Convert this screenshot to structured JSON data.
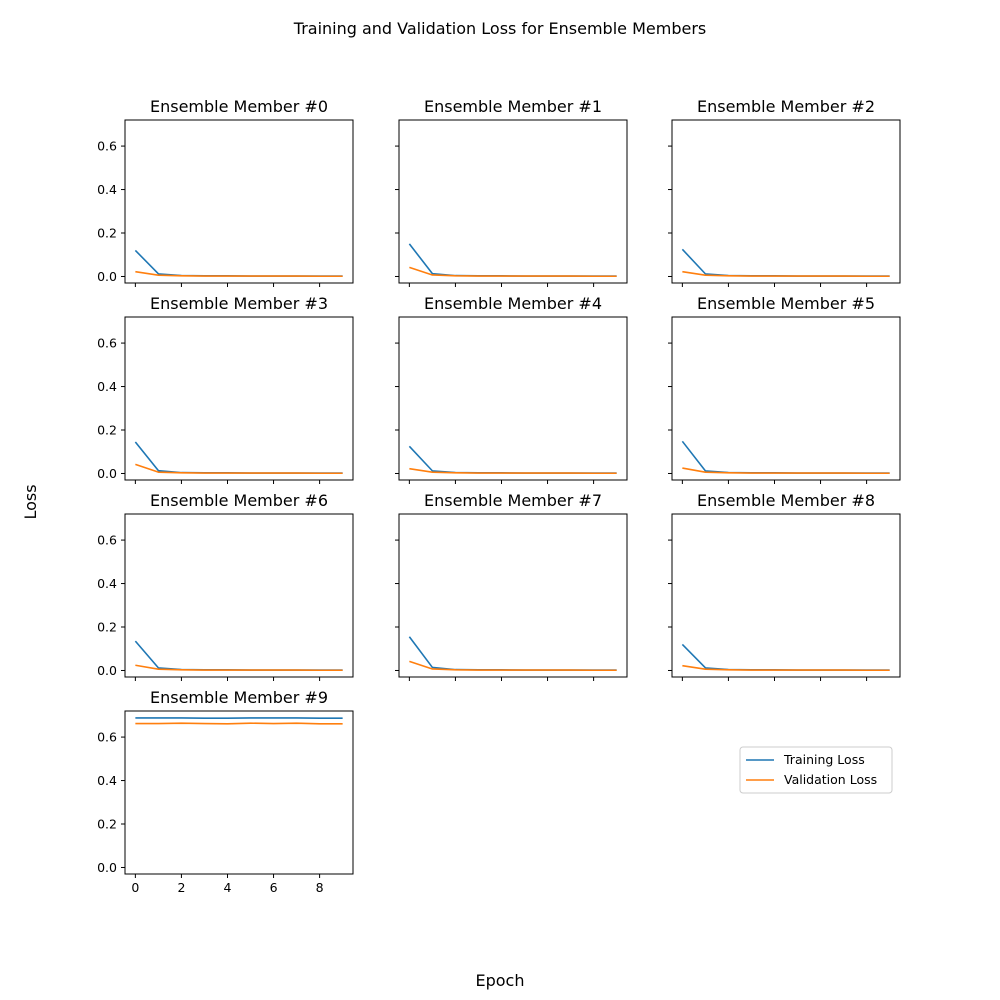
{
  "figure": {
    "title": "Training and Validation Loss for Ensemble Members",
    "xlabel": "Epoch",
    "ylabel": "Loss"
  },
  "chart_data": [
    {
      "type": "line",
      "title": "Ensemble Member #0",
      "x": [
        0,
        1,
        2,
        3,
        4,
        5,
        6,
        7,
        8,
        9
      ],
      "ylim": [
        -0.03,
        0.72
      ],
      "xlim": [
        -0.45,
        9.45
      ],
      "yticks": [
        "0.0",
        "0.2",
        "0.4",
        "0.6"
      ],
      "xticks": [],
      "series": [
        {
          "name": "Training Loss",
          "color": "#1f77b4",
          "values": [
            0.12,
            0.012,
            0.004,
            0.003,
            0.003,
            0.002,
            0.002,
            0.002,
            0.002,
            0.002
          ]
        },
        {
          "name": "Validation Loss",
          "color": "#ff7f0e",
          "values": [
            0.022,
            0.006,
            0.003,
            0.002,
            0.002,
            0.002,
            0.002,
            0.002,
            0.001,
            0.001
          ]
        }
      ]
    },
    {
      "type": "line",
      "title": "Ensemble Member #1",
      "x": [
        0,
        1,
        2,
        3,
        4,
        5,
        6,
        7,
        8,
        9
      ],
      "ylim": [
        -0.03,
        0.72
      ],
      "xlim": [
        -0.45,
        9.45
      ],
      "yticks": [],
      "xticks": [],
      "series": [
        {
          "name": "Training Loss",
          "color": "#1f77b4",
          "values": [
            0.15,
            0.013,
            0.004,
            0.003,
            0.003,
            0.002,
            0.002,
            0.002,
            0.002,
            0.002
          ]
        },
        {
          "name": "Validation Loss",
          "color": "#ff7f0e",
          "values": [
            0.042,
            0.007,
            0.003,
            0.002,
            0.002,
            0.002,
            0.002,
            0.002,
            0.001,
            0.001
          ]
        }
      ]
    },
    {
      "type": "line",
      "title": "Ensemble Member #2",
      "x": [
        0,
        1,
        2,
        3,
        4,
        5,
        6,
        7,
        8,
        9
      ],
      "ylim": [
        -0.03,
        0.72
      ],
      "xlim": [
        -0.45,
        9.45
      ],
      "yticks": [],
      "xticks": [],
      "series": [
        {
          "name": "Training Loss",
          "color": "#1f77b4",
          "values": [
            0.125,
            0.012,
            0.004,
            0.003,
            0.003,
            0.002,
            0.002,
            0.002,
            0.002,
            0.002
          ]
        },
        {
          "name": "Validation Loss",
          "color": "#ff7f0e",
          "values": [
            0.022,
            0.006,
            0.003,
            0.002,
            0.002,
            0.002,
            0.002,
            0.002,
            0.001,
            0.001
          ]
        }
      ]
    },
    {
      "type": "line",
      "title": "Ensemble Member #3",
      "x": [
        0,
        1,
        2,
        3,
        4,
        5,
        6,
        7,
        8,
        9
      ],
      "ylim": [
        -0.03,
        0.72
      ],
      "xlim": [
        -0.45,
        9.45
      ],
      "yticks": [
        "0.0",
        "0.2",
        "0.4",
        "0.6"
      ],
      "xticks": [],
      "series": [
        {
          "name": "Training Loss",
          "color": "#1f77b4",
          "values": [
            0.145,
            0.013,
            0.004,
            0.003,
            0.003,
            0.002,
            0.002,
            0.002,
            0.002,
            0.002
          ]
        },
        {
          "name": "Validation Loss",
          "color": "#ff7f0e",
          "values": [
            0.042,
            0.006,
            0.003,
            0.002,
            0.002,
            0.002,
            0.002,
            0.002,
            0.001,
            0.001
          ]
        }
      ]
    },
    {
      "type": "line",
      "title": "Ensemble Member #4",
      "x": [
        0,
        1,
        2,
        3,
        4,
        5,
        6,
        7,
        8,
        9
      ],
      "ylim": [
        -0.03,
        0.72
      ],
      "xlim": [
        -0.45,
        9.45
      ],
      "yticks": [],
      "xticks": [],
      "series": [
        {
          "name": "Training Loss",
          "color": "#1f77b4",
          "values": [
            0.125,
            0.012,
            0.004,
            0.003,
            0.003,
            0.002,
            0.002,
            0.002,
            0.002,
            0.002
          ]
        },
        {
          "name": "Validation Loss",
          "color": "#ff7f0e",
          "values": [
            0.022,
            0.006,
            0.003,
            0.002,
            0.002,
            0.002,
            0.002,
            0.002,
            0.001,
            0.001
          ]
        }
      ]
    },
    {
      "type": "line",
      "title": "Ensemble Member #5",
      "x": [
        0,
        1,
        2,
        3,
        4,
        5,
        6,
        7,
        8,
        9
      ],
      "ylim": [
        -0.03,
        0.72
      ],
      "xlim": [
        -0.45,
        9.45
      ],
      "yticks": [],
      "xticks": [],
      "series": [
        {
          "name": "Training Loss",
          "color": "#1f77b4",
          "values": [
            0.148,
            0.012,
            0.004,
            0.003,
            0.003,
            0.002,
            0.002,
            0.002,
            0.002,
            0.002
          ]
        },
        {
          "name": "Validation Loss",
          "color": "#ff7f0e",
          "values": [
            0.025,
            0.006,
            0.003,
            0.002,
            0.002,
            0.002,
            0.002,
            0.002,
            0.001,
            0.001
          ]
        }
      ]
    },
    {
      "type": "line",
      "title": "Ensemble Member #6",
      "x": [
        0,
        1,
        2,
        3,
        4,
        5,
        6,
        7,
        8,
        9
      ],
      "ylim": [
        -0.03,
        0.72
      ],
      "xlim": [
        -0.45,
        9.45
      ],
      "yticks": [
        "0.0",
        "0.2",
        "0.4",
        "0.6"
      ],
      "xticks": [],
      "series": [
        {
          "name": "Training Loss",
          "color": "#1f77b4",
          "values": [
            0.135,
            0.012,
            0.004,
            0.003,
            0.003,
            0.002,
            0.002,
            0.002,
            0.002,
            0.002
          ]
        },
        {
          "name": "Validation Loss",
          "color": "#ff7f0e",
          "values": [
            0.024,
            0.006,
            0.003,
            0.002,
            0.002,
            0.002,
            0.002,
            0.002,
            0.001,
            0.001
          ]
        }
      ]
    },
    {
      "type": "line",
      "title": "Ensemble Member #7",
      "x": [
        0,
        1,
        2,
        3,
        4,
        5,
        6,
        7,
        8,
        9
      ],
      "ylim": [
        -0.03,
        0.72
      ],
      "xlim": [
        -0.45,
        9.45
      ],
      "yticks": [],
      "xticks": [],
      "series": [
        {
          "name": "Training Loss",
          "color": "#1f77b4",
          "values": [
            0.155,
            0.014,
            0.004,
            0.003,
            0.003,
            0.002,
            0.002,
            0.002,
            0.002,
            0.002
          ]
        },
        {
          "name": "Validation Loss",
          "color": "#ff7f0e",
          "values": [
            0.042,
            0.007,
            0.003,
            0.002,
            0.002,
            0.002,
            0.002,
            0.002,
            0.001,
            0.001
          ]
        }
      ]
    },
    {
      "type": "line",
      "title": "Ensemble Member #8",
      "x": [
        0,
        1,
        2,
        3,
        4,
        5,
        6,
        7,
        8,
        9
      ],
      "ylim": [
        -0.03,
        0.72
      ],
      "xlim": [
        -0.45,
        9.45
      ],
      "yticks": [],
      "xticks": [],
      "series": [
        {
          "name": "Training Loss",
          "color": "#1f77b4",
          "values": [
            0.12,
            0.012,
            0.004,
            0.003,
            0.003,
            0.002,
            0.002,
            0.002,
            0.002,
            0.002
          ]
        },
        {
          "name": "Validation Loss",
          "color": "#ff7f0e",
          "values": [
            0.022,
            0.006,
            0.003,
            0.002,
            0.002,
            0.002,
            0.002,
            0.002,
            0.001,
            0.001
          ]
        }
      ]
    },
    {
      "type": "line",
      "title": "Ensemble Member #9",
      "x": [
        0,
        1,
        2,
        3,
        4,
        5,
        6,
        7,
        8,
        9
      ],
      "ylim": [
        -0.03,
        0.72
      ],
      "xlim": [
        -0.45,
        9.45
      ],
      "yticks": [
        "0.0",
        "0.2",
        "0.4",
        "0.6"
      ],
      "xticks": [
        "0",
        "2",
        "4",
        "6",
        "8"
      ],
      "series": [
        {
          "name": "Training Loss",
          "color": "#1f77b4",
          "values": [
            0.688,
            0.688,
            0.688,
            0.687,
            0.687,
            0.688,
            0.688,
            0.688,
            0.687,
            0.687
          ]
        },
        {
          "name": "Validation Loss",
          "color": "#ff7f0e",
          "values": [
            0.662,
            0.662,
            0.664,
            0.662,
            0.661,
            0.664,
            0.662,
            0.664,
            0.661,
            0.661
          ]
        }
      ]
    }
  ],
  "legend": {
    "placement": "lower-right",
    "entries": [
      {
        "label": "Training Loss",
        "color": "#1f77b4"
      },
      {
        "label": "Validation Loss",
        "color": "#ff7f0e"
      }
    ]
  }
}
